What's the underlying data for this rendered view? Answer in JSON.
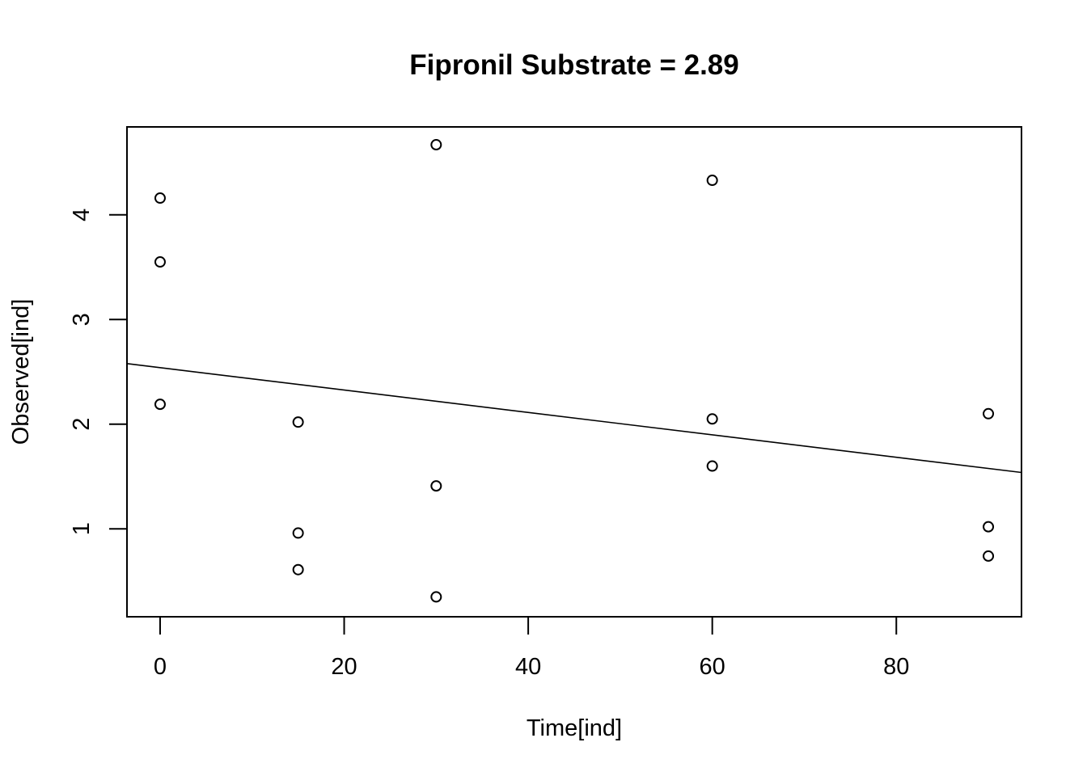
{
  "chart_data": {
    "type": "scatter",
    "title": "Fipronil Substrate = 2.89",
    "xlabel": "Time[ind]",
    "ylabel": "Observed[ind]",
    "xlim": [
      -3.6,
      93.6
    ],
    "ylim": [
      0.16,
      4.84
    ],
    "xticks": [
      0,
      20,
      40,
      60,
      80
    ],
    "yticks": [
      1,
      2,
      3,
      4
    ],
    "grid": false,
    "legend": "none",
    "points": [
      {
        "x": 0,
        "y": 4.16
      },
      {
        "x": 0,
        "y": 3.55
      },
      {
        "x": 0,
        "y": 2.19
      },
      {
        "x": 15,
        "y": 2.02
      },
      {
        "x": 15,
        "y": 0.96
      },
      {
        "x": 15,
        "y": 0.61
      },
      {
        "x": 30,
        "y": 4.67
      },
      {
        "x": 30,
        "y": 1.41
      },
      {
        "x": 30,
        "y": 0.35
      },
      {
        "x": 60,
        "y": 4.33
      },
      {
        "x": 60,
        "y": 2.05
      },
      {
        "x": 60,
        "y": 1.6
      },
      {
        "x": 90,
        "y": 2.1
      },
      {
        "x": 90,
        "y": 1.02
      },
      {
        "x": 90,
        "y": 0.74
      }
    ],
    "fit_line": {
      "intercept": 2.54,
      "slope": -0.0107
    }
  }
}
